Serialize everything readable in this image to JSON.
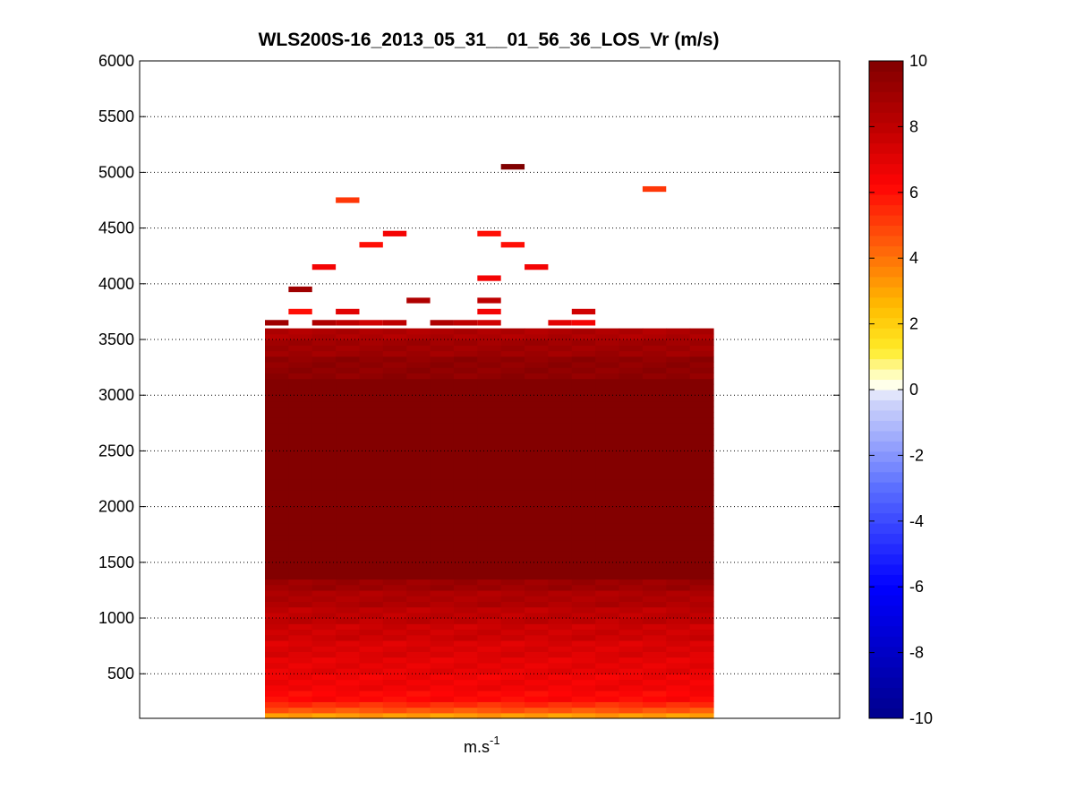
{
  "chart_data": {
    "type": "heatmap",
    "title": "WLS200S-16_2013_05_31__01_56_36_LOS_Vr (m/s)",
    "xlabel": "m.s",
    "xlabel_superscript": "-1",
    "ylim": [
      100,
      6000
    ],
    "yticks": [
      500,
      1000,
      1500,
      2000,
      2500,
      3000,
      3500,
      4000,
      4500,
      5000,
      5500,
      6000
    ],
    "grid": "horizontal dotted",
    "columns": 19,
    "row_height_m": 50,
    "colorbar": {
      "range": [
        -10,
        10
      ],
      "ticks": [
        -10,
        -8,
        -6,
        -4,
        -2,
        0,
        2,
        4,
        6,
        8,
        10
      ],
      "colormap": "blue-white-yellow-red"
    },
    "profile": [
      {
        "altitude_max": 150,
        "value": 3.2
      },
      {
        "altitude_max": 200,
        "value": 4.6
      },
      {
        "altitude_max": 250,
        "value": 5.4
      },
      {
        "altitude_max": 350,
        "value": 6.2
      },
      {
        "altitude_max": 500,
        "value": 6.6
      },
      {
        "altitude_max": 650,
        "value": 6.9
      },
      {
        "altitude_max": 800,
        "value": 7.2
      },
      {
        "altitude_max": 950,
        "value": 7.6
      },
      {
        "altitude_max": 1100,
        "value": 8.0
      },
      {
        "altitude_max": 1250,
        "value": 8.5
      },
      {
        "altitude_max": 1350,
        "value": 9.1
      },
      {
        "altitude_max": 3150,
        "value": 9.9
      },
      {
        "altitude_max": 3350,
        "value": 9.5
      },
      {
        "altitude_max": 3500,
        "value": 9.0
      },
      {
        "altitude_max": 3600,
        "value": 8.5
      }
    ],
    "sparse_cells": [
      {
        "col": 0,
        "altitude": 3650,
        "value": 9.0
      },
      {
        "col": 1,
        "altitude": 3750,
        "value": 6.0
      },
      {
        "col": 1,
        "altitude": 3950,
        "value": 9.0
      },
      {
        "col": 2,
        "altitude": 3650,
        "value": 8.5
      },
      {
        "col": 2,
        "altitude": 4150,
        "value": 6.5
      },
      {
        "col": 3,
        "altitude": 3650,
        "value": 8.0
      },
      {
        "col": 3,
        "altitude": 3750,
        "value": 7.0
      },
      {
        "col": 3,
        "altitude": 4750,
        "value": 5.2
      },
      {
        "col": 4,
        "altitude": 3650,
        "value": 7.5
      },
      {
        "col": 4,
        "altitude": 4350,
        "value": 6.0
      },
      {
        "col": 5,
        "altitude": 3650,
        "value": 8.0
      },
      {
        "col": 5,
        "altitude": 4450,
        "value": 6.5
      },
      {
        "col": 6,
        "altitude": 3850,
        "value": 8.5
      },
      {
        "col": 7,
        "altitude": 3650,
        "value": 8.5
      },
      {
        "col": 8,
        "altitude": 3650,
        "value": 8.0
      },
      {
        "col": 9,
        "altitude": 3650,
        "value": 7.5
      },
      {
        "col": 9,
        "altitude": 3750,
        "value": 6.5
      },
      {
        "col": 9,
        "altitude": 3850,
        "value": 8.0
      },
      {
        "col": 9,
        "altitude": 4050,
        "value": 6.5
      },
      {
        "col": 9,
        "altitude": 4450,
        "value": 6.0
      },
      {
        "col": 10,
        "altitude": 5050,
        "value": 10.0
      },
      {
        "col": 10,
        "altitude": 4350,
        "value": 6.0
      },
      {
        "col": 11,
        "altitude": 4150,
        "value": 6.5
      },
      {
        "col": 12,
        "altitude": 3650,
        "value": 7.0
      },
      {
        "col": 13,
        "altitude": 3650,
        "value": 6.5
      },
      {
        "col": 13,
        "altitude": 3750,
        "value": 7.5
      },
      {
        "col": 16,
        "altitude": 4850,
        "value": 5.2
      }
    ]
  },
  "colors": {
    "axis": "#000000",
    "grid": "#000000",
    "background": "#ffffff"
  }
}
